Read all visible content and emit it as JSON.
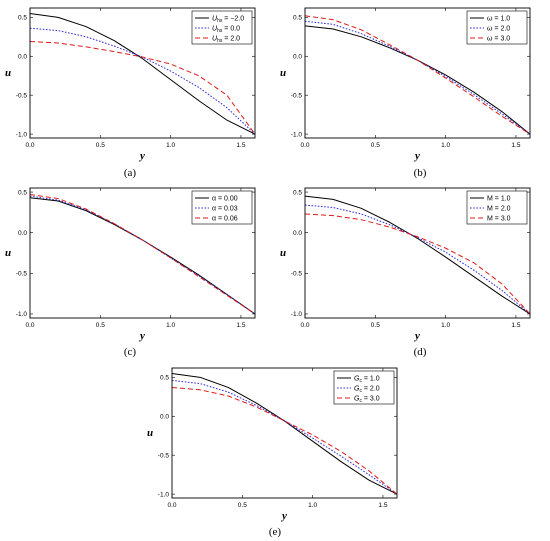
{
  "colors": {
    "black": "#000000",
    "blue": "#2b2bd6",
    "red": "#e01818"
  },
  "chart_data": [
    {
      "type": "line",
      "caption": "(a)",
      "xlabel": "y",
      "ylabel": "u",
      "xlim": [
        0,
        1.6
      ],
      "ylim": [
        -1.05,
        0.62
      ],
      "xticks": [
        "0.0",
        "0.5",
        "1.0",
        "1.5"
      ],
      "yticks": [
        "0.5",
        "0.0",
        "-0.5",
        "-1.0"
      ],
      "legend_position": "top-right",
      "series": [
        {
          "name": "U_hs = -2.0",
          "label_main": "U",
          "label_sub": "hs",
          "label_value": " = −2.0",
          "style": "solid",
          "color": "#000000",
          "x": [
            0,
            0.2,
            0.4,
            0.6,
            0.8,
            1.0,
            1.2,
            1.4,
            1.6
          ],
          "y": [
            0.55,
            0.5,
            0.38,
            0.2,
            -0.03,
            -0.3,
            -0.57,
            -0.82,
            -1.0
          ]
        },
        {
          "name": "U_hs = 0.0",
          "label_main": "U",
          "label_sub": "hs",
          "label_value": " = 0.0",
          "style": "dotted",
          "color": "#2b2bd6",
          "x": [
            0,
            0.2,
            0.4,
            0.6,
            0.8,
            1.0,
            1.2,
            1.4,
            1.6
          ],
          "y": [
            0.36,
            0.33,
            0.25,
            0.13,
            -0.01,
            -0.19,
            -0.4,
            -0.66,
            -1.0
          ]
        },
        {
          "name": "U_hs = 2.0",
          "label_main": "U",
          "label_sub": "hs",
          "label_value": " = 2.0",
          "style": "dashed",
          "color": "#e01818",
          "x": [
            0,
            0.2,
            0.4,
            0.6,
            0.8,
            1.0,
            1.2,
            1.4,
            1.6
          ],
          "y": [
            0.19,
            0.17,
            0.12,
            0.06,
            -0.01,
            -0.1,
            -0.25,
            -0.5,
            -1.0
          ]
        }
      ]
    },
    {
      "type": "line",
      "caption": "(b)",
      "xlabel": "y",
      "ylabel": "u",
      "xlim": [
        0,
        1.6
      ],
      "ylim": [
        -1.05,
        0.62
      ],
      "xticks": [
        "0.0",
        "0.5",
        "1.0",
        "1.5"
      ],
      "yticks": [
        "0.5",
        "0.0",
        "-0.5",
        "-1.0"
      ],
      "legend_position": "top-right",
      "series": [
        {
          "name": "ω = 1.0",
          "label_main": "ω",
          "label_sub": "",
          "label_value": " = 1.0",
          "style": "solid",
          "color": "#000000",
          "x": [
            0,
            0.2,
            0.4,
            0.6,
            0.8,
            1.0,
            1.2,
            1.4,
            1.6
          ],
          "y": [
            0.39,
            0.35,
            0.25,
            0.11,
            -0.05,
            -0.24,
            -0.46,
            -0.71,
            -1.0
          ]
        },
        {
          "name": "ω = 2.0",
          "label_main": "ω",
          "label_sub": "",
          "label_value": " = 2.0",
          "style": "dotted",
          "color": "#2b2bd6",
          "x": [
            0,
            0.2,
            0.4,
            0.6,
            0.8,
            1.0,
            1.2,
            1.4,
            1.6
          ],
          "y": [
            0.45,
            0.41,
            0.29,
            0.13,
            -0.05,
            -0.26,
            -0.49,
            -0.74,
            -1.0
          ]
        },
        {
          "name": "ω = 3.0",
          "label_main": "ω",
          "label_sub": "",
          "label_value": " = 3.0",
          "style": "dashed",
          "color": "#e01818",
          "x": [
            0,
            0.2,
            0.4,
            0.6,
            0.8,
            1.0,
            1.2,
            1.4,
            1.6
          ],
          "y": [
            0.52,
            0.47,
            0.34,
            0.15,
            -0.05,
            -0.28,
            -0.52,
            -0.77,
            -1.0
          ]
        }
      ]
    },
    {
      "type": "line",
      "caption": "(c)",
      "xlabel": "y",
      "ylabel": "u",
      "xlim": [
        0,
        1.6
      ],
      "ylim": [
        -1.05,
        0.55
      ],
      "xticks": [
        "0.0",
        "0.5",
        "1.0",
        "1.5"
      ],
      "yticks": [
        "0.5",
        "0.0",
        "-0.5",
        "-1.0"
      ],
      "legend_position": "top-right",
      "series": [
        {
          "name": "α = 0.00",
          "label_main": "α",
          "label_sub": "",
          "label_value": " = 0.00",
          "style": "solid",
          "color": "#000000",
          "x": [
            0,
            0.2,
            0.4,
            0.6,
            0.8,
            1.0,
            1.2,
            1.4,
            1.6
          ],
          "y": [
            0.43,
            0.39,
            0.27,
            0.1,
            -0.09,
            -0.3,
            -0.52,
            -0.76,
            -1.0
          ]
        },
        {
          "name": "α = 0.03",
          "label_main": "α",
          "label_sub": "",
          "label_value": " = 0.03",
          "style": "dotted",
          "color": "#2b2bd6",
          "x": [
            0,
            0.2,
            0.4,
            0.6,
            0.8,
            1.0,
            1.2,
            1.4,
            1.6
          ],
          "y": [
            0.45,
            0.4,
            0.28,
            0.11,
            -0.09,
            -0.31,
            -0.53,
            -0.76,
            -1.0
          ]
        },
        {
          "name": "α = 0.06",
          "label_main": "α",
          "label_sub": "",
          "label_value": " = 0.06",
          "style": "dashed",
          "color": "#e01818",
          "x": [
            0,
            0.2,
            0.4,
            0.6,
            0.8,
            1.0,
            1.2,
            1.4,
            1.6
          ],
          "y": [
            0.47,
            0.42,
            0.29,
            0.11,
            -0.09,
            -0.31,
            -0.54,
            -0.77,
            -1.0
          ]
        }
      ]
    },
    {
      "type": "line",
      "caption": "(d)",
      "xlabel": "y",
      "ylabel": "u",
      "xlim": [
        0,
        1.6
      ],
      "ylim": [
        -1.05,
        0.55
      ],
      "xticks": [
        "0.0",
        "0.5",
        "1.0",
        "1.5"
      ],
      "yticks": [
        "0.5",
        "0.0",
        "-0.5",
        "-1.0"
      ],
      "legend_position": "top-right",
      "series": [
        {
          "name": "M = 1.0",
          "label_main": "M",
          "label_sub": "",
          "label_value": " = 1.0",
          "style": "solid",
          "color": "#000000",
          "x": [
            0,
            0.2,
            0.4,
            0.6,
            0.8,
            1.0,
            1.2,
            1.4,
            1.6
          ],
          "y": [
            0.45,
            0.41,
            0.3,
            0.13,
            -0.07,
            -0.3,
            -0.54,
            -0.78,
            -1.0
          ]
        },
        {
          "name": "M = 2.0",
          "label_main": "M",
          "label_sub": "",
          "label_value": " = 2.0",
          "style": "dotted",
          "color": "#2b2bd6",
          "x": [
            0,
            0.2,
            0.4,
            0.6,
            0.8,
            1.0,
            1.2,
            1.4,
            1.6
          ],
          "y": [
            0.34,
            0.31,
            0.23,
            0.1,
            -0.06,
            -0.24,
            -0.46,
            -0.71,
            -1.0
          ]
        },
        {
          "name": "M = 3.0",
          "label_main": "M",
          "label_sub": "",
          "label_value": " = 3.0",
          "style": "dashed",
          "color": "#e01818",
          "x": [
            0,
            0.2,
            0.4,
            0.6,
            0.8,
            1.0,
            1.2,
            1.4,
            1.6
          ],
          "y": [
            0.23,
            0.21,
            0.16,
            0.07,
            -0.05,
            -0.19,
            -0.37,
            -0.63,
            -1.0
          ]
        }
      ]
    },
    {
      "type": "line",
      "caption": "(e)",
      "xlabel": "y",
      "ylabel": "u",
      "xlim": [
        0,
        1.6
      ],
      "ylim": [
        -1.05,
        0.62
      ],
      "xticks": [
        "0.0",
        "0.5",
        "1.0",
        "1.5"
      ],
      "yticks": [
        "0.5",
        "0.0",
        "-0.5",
        "-1.0"
      ],
      "legend_position": "top-right",
      "series": [
        {
          "name": "G_c = 1.0",
          "label_main": "G",
          "label_sub": "c",
          "label_value": " = 1.0",
          "style": "solid",
          "color": "#000000",
          "x": [
            0,
            0.2,
            0.4,
            0.6,
            0.8,
            1.0,
            1.2,
            1.4,
            1.6
          ],
          "y": [
            0.55,
            0.5,
            0.37,
            0.17,
            -0.06,
            -0.32,
            -0.58,
            -0.82,
            -1.0
          ]
        },
        {
          "name": "G_c = 2.0",
          "label_main": "G",
          "label_sub": "c",
          "label_value": " = 2.0",
          "style": "dotted",
          "color": "#2b2bd6",
          "x": [
            0,
            0.2,
            0.4,
            0.6,
            0.8,
            1.0,
            1.2,
            1.4,
            1.6
          ],
          "y": [
            0.46,
            0.42,
            0.31,
            0.14,
            -0.06,
            -0.28,
            -0.51,
            -0.75,
            -1.0
          ]
        },
        {
          "name": "G_c = 3.0",
          "label_main": "G",
          "label_sub": "c",
          "label_value": " = 3.0",
          "style": "dashed",
          "color": "#e01818",
          "x": [
            0,
            0.2,
            0.4,
            0.6,
            0.8,
            1.0,
            1.2,
            1.4,
            1.6
          ],
          "y": [
            0.37,
            0.34,
            0.26,
            0.12,
            -0.06,
            -0.24,
            -0.45,
            -0.7,
            -1.0
          ]
        }
      ]
    }
  ]
}
